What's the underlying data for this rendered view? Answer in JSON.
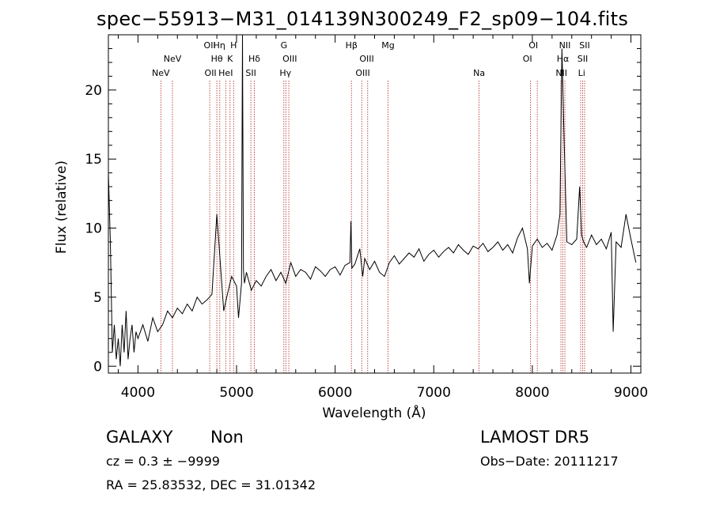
{
  "header": {
    "title": "spec−55913−M31_014139N300249_F2_sp09−104.fits"
  },
  "info": {
    "class": "GALAXY",
    "subclass": "Non",
    "survey": "LAMOST DR5",
    "cz": "cz = 0.3 ± −9999",
    "obs_date": "Obs−Date: 20111217",
    "coords": "RA =  25.83532, DEC =  31.01342"
  },
  "chart_data": {
    "type": "line",
    "title": "spec−55913−M31_014139N300249_F2_sp09−104.fits",
    "xlabel": "Wavelength (Å)",
    "ylabel": "Flux (relative)",
    "xlim": [
      3700,
      9100
    ],
    "ylim": [
      -0.5,
      24
    ],
    "xticks": [
      4000,
      5000,
      6000,
      7000,
      8000,
      9000
    ],
    "yticks": [
      0,
      5,
      10,
      15,
      20
    ],
    "line_color": "#000000",
    "marker_color": "#b22222",
    "series": [
      {
        "x": [
          3700,
          3720,
          3740,
          3760,
          3780,
          3800,
          3820,
          3840,
          3860,
          3880,
          3900,
          3920,
          3940,
          3960,
          3980,
          4000,
          4050,
          4100,
          4150,
          4200,
          4250,
          4300,
          4350,
          4400,
          4450,
          4500,
          4550,
          4600,
          4650,
          4700,
          4750,
          4800,
          4850,
          4870,
          4900,
          4950,
          5000,
          5020,
          5050,
          5060,
          5070,
          5080,
          5100,
          5150,
          5200,
          5250,
          5300,
          5350,
          5400,
          5450,
          5500,
          5550,
          5600,
          5650,
          5700,
          5750,
          5800,
          5850,
          5900,
          5950,
          6000,
          6050,
          6100,
          6150,
          6160,
          6170,
          6200,
          6250,
          6280,
          6300,
          6350,
          6400,
          6450,
          6500,
          6550,
          6600,
          6650,
          6700,
          6750,
          6800,
          6850,
          6900,
          6950,
          7000,
          7050,
          7100,
          7150,
          7200,
          7250,
          7300,
          7350,
          7400,
          7450,
          7500,
          7550,
          7600,
          7650,
          7700,
          7750,
          7800,
          7850,
          7900,
          7950,
          7970,
          8000,
          8050,
          8100,
          8150,
          8200,
          8250,
          8280,
          8300,
          8320,
          8350,
          8400,
          8450,
          8480,
          8500,
          8520,
          8550,
          8600,
          8650,
          8700,
          8750,
          8800,
          8820,
          8850,
          8900,
          8950,
          9000,
          9050
        ],
        "values": [
          14,
          9,
          1,
          3,
          0.5,
          2,
          0,
          3,
          1,
          4,
          0.5,
          2,
          3,
          1,
          2.5,
          2,
          3,
          1.8,
          3.5,
          2.5,
          3,
          4,
          3.5,
          4.2,
          3.8,
          4.5,
          4,
          5,
          4.5,
          4.8,
          5.2,
          11,
          6,
          4,
          5,
          6.5,
          5.8,
          3.5,
          6,
          25,
          7,
          6,
          6.8,
          5.5,
          6.2,
          5.8,
          6.5,
          7,
          6.2,
          6.8,
          6,
          7.5,
          6.5,
          7,
          6.8,
          6.3,
          7.2,
          6.9,
          6.5,
          7,
          7.2,
          6.6,
          7.3,
          7.5,
          10.5,
          7.1,
          7.4,
          8.5,
          6.5,
          7.8,
          7,
          7.6,
          6.8,
          6.5,
          7.5,
          8,
          7.4,
          7.8,
          8.2,
          7.9,
          8.5,
          7.6,
          8.1,
          8.4,
          7.9,
          8.3,
          8.6,
          8.2,
          8.8,
          8.4,
          8.1,
          8.7,
          8.5,
          8.9,
          8.3,
          8.6,
          9,
          8.4,
          8.8,
          8.2,
          9.3,
          10,
          8.5,
          6,
          8.7,
          9.2,
          8.6,
          8.9,
          8.4,
          9.5,
          11,
          23,
          17,
          9,
          8.8,
          9.2,
          13,
          9.5,
          9,
          8.6,
          9.5,
          8.8,
          9.2,
          8.5,
          9.7,
          2.5,
          9,
          8.6,
          11,
          9.2,
          7.5
        ]
      }
    ],
    "annotations": [
      {
        "label": "NeV",
        "x": 4232,
        "row": 3
      },
      {
        "label": "NeV",
        "x": 4350,
        "row": 2
      },
      {
        "label": "OII",
        "x": 4728,
        "row": 1
      },
      {
        "label": "OII",
        "x": 4736,
        "row": 3
      },
      {
        "label": "Hη",
        "x": 4825,
        "row": 1
      },
      {
        "label": "Hθ",
        "x": 4800,
        "row": 2
      },
      {
        "label": "HeI",
        "x": 4890,
        "row": 3
      },
      {
        "label": "K",
        "x": 4934,
        "row": 2
      },
      {
        "label": "H",
        "x": 4970,
        "row": 1
      },
      {
        "label": "Hδ",
        "x": 5180,
        "row": 2
      },
      {
        "label": "SII",
        "x": 5145,
        "row": 3
      },
      {
        "label": "G",
        "x": 5480,
        "row": 1
      },
      {
        "label": "OIII",
        "x": 5540,
        "row": 2
      },
      {
        "label": "Hγ",
        "x": 5495,
        "row": 3
      },
      {
        "label": "Hβ",
        "x": 6165,
        "row": 1
      },
      {
        "label": "OIII",
        "x": 6320,
        "row": 2
      },
      {
        "label": "OIII",
        "x": 6280,
        "row": 3
      },
      {
        "label": "Mg",
        "x": 6536,
        "row": 1
      },
      {
        "label": "Na",
        "x": 7460,
        "row": 3
      },
      {
        "label": "OI",
        "x": 8010,
        "row": 1
      },
      {
        "label": "OI",
        "x": 7950,
        "row": 2
      },
      {
        "label": "NII",
        "x": 8330,
        "row": 1
      },
      {
        "label": "Hα",
        "x": 8310,
        "row": 2
      },
      {
        "label": "NII",
        "x": 8295,
        "row": 3
      },
      {
        "label": "SII",
        "x": 8530,
        "row": 1
      },
      {
        "label": "SII",
        "x": 8510,
        "row": 2
      },
      {
        "label": "Li",
        "x": 8500,
        "row": 3
      }
    ],
    "marker_lines": [
      4232,
      4350,
      4728,
      4800,
      4830,
      4890,
      4934,
      4970,
      5145,
      5180,
      5480,
      5500,
      5530,
      6165,
      6270,
      6330,
      6536,
      7460,
      7980,
      8050,
      8290,
      8310,
      8330,
      8490,
      8510,
      8530
    ]
  }
}
